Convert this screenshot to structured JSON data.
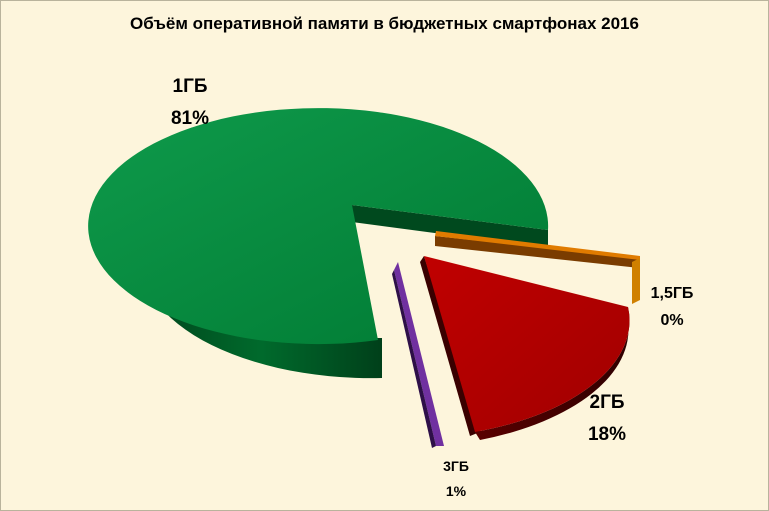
{
  "chart_data": {
    "type": "pie",
    "title": "Объём оперативной памяти в бюджетных смартфонах 2016",
    "slices": [
      {
        "label": "1ГБ",
        "value": 81,
        "percent_label": "81%",
        "color": "#008a3e"
      },
      {
        "label": "1,5ГБ",
        "value": 0,
        "percent_label": "0%",
        "color": "#e07b00"
      },
      {
        "label": "2ГБ",
        "value": 18,
        "percent_label": "18%",
        "color": "#b00000"
      },
      {
        "label": "3ГБ",
        "value": 1,
        "percent_label": "1%",
        "color": "#6a2ea0"
      }
    ],
    "legend": "none",
    "style": "3d exploded pie"
  }
}
